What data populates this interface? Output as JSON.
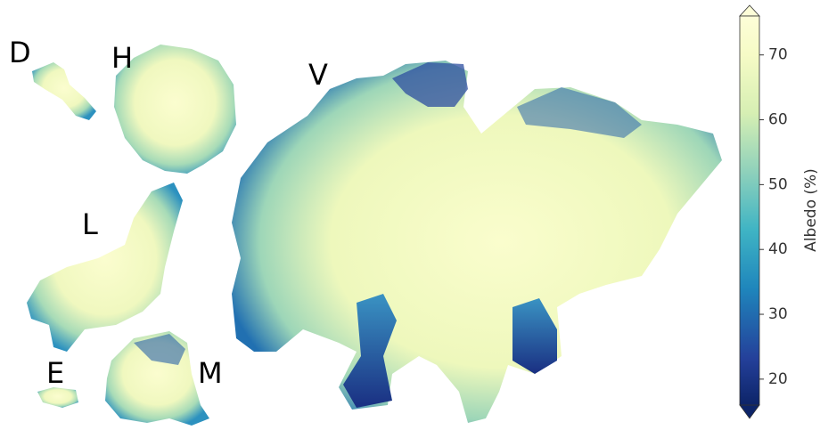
{
  "map": {
    "region_labels": [
      "D",
      "H",
      "V",
      "L",
      "E",
      "M"
    ],
    "colorbar": {
      "label": "Albedo (%)",
      "range": [
        16,
        76
      ],
      "ticks": [
        20,
        30,
        40,
        50,
        60,
        70
      ]
    }
  }
}
